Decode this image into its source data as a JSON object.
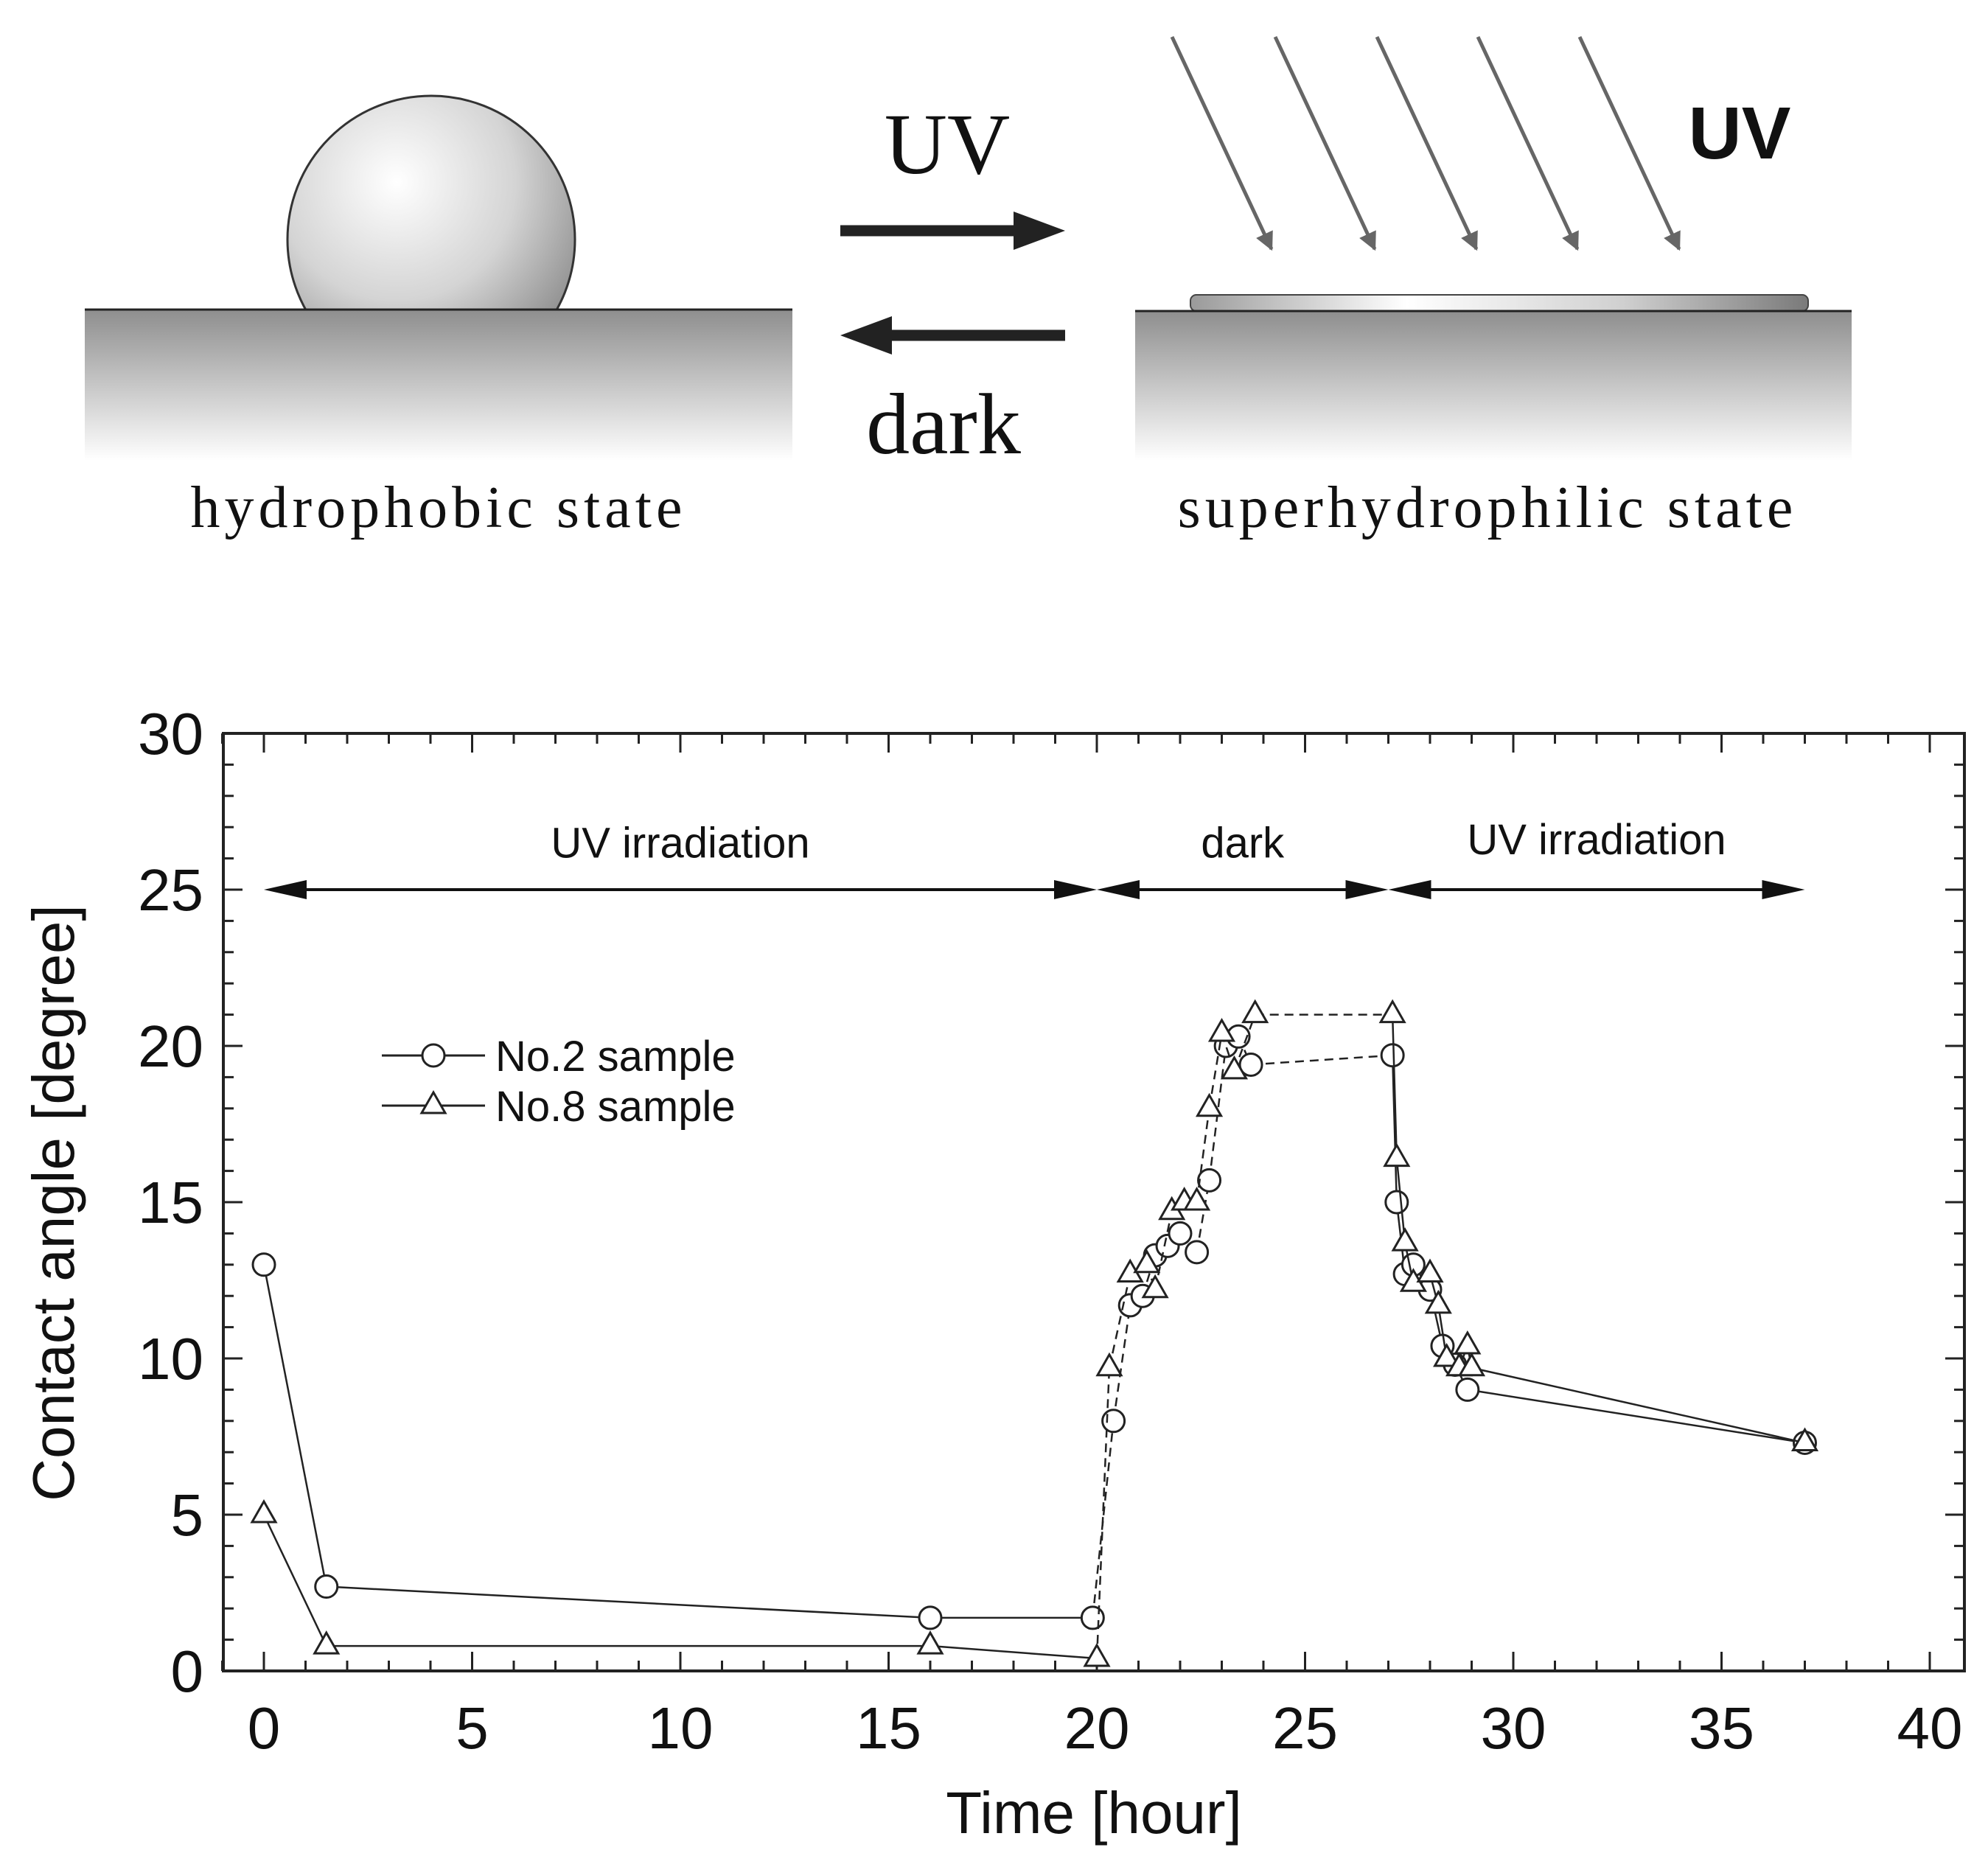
{
  "schematic": {
    "left_state_label": "hydrophobic state",
    "right_state_label": "superhydrophilic state",
    "forward_arrow_label": "UV",
    "backward_arrow_label": "dark",
    "irradiation_label": "UV"
  },
  "chart_data": {
    "type": "line",
    "xlabel": "Time [hour]",
    "ylabel": "Contact angle [degree]",
    "xlim": [
      -1,
      40
    ],
    "ylim": [
      0,
      30
    ],
    "x_ticks": [
      0,
      5,
      10,
      15,
      20,
      25,
      30,
      35,
      40
    ],
    "y_ticks": [
      0,
      5,
      10,
      15,
      20,
      25,
      30
    ],
    "legend_position": "upper-left",
    "grid": false,
    "series": [
      {
        "name": "No.2 sample",
        "marker": "circle",
        "points": [
          [
            0,
            13.0
          ],
          [
            1.5,
            2.7
          ],
          [
            16,
            1.7
          ],
          [
            19.9,
            1.7
          ],
          [
            20.4,
            8.0
          ],
          [
            20.8,
            11.7
          ],
          [
            21.1,
            12.0
          ],
          [
            21.4,
            13.3
          ],
          [
            21.7,
            13.6
          ],
          [
            22.0,
            14.0
          ],
          [
            22.4,
            13.4
          ],
          [
            22.7,
            15.7
          ],
          [
            23.1,
            20.0
          ],
          [
            23.4,
            20.3
          ],
          [
            23.7,
            19.4
          ],
          [
            27.1,
            19.7
          ],
          [
            27.2,
            15.0
          ],
          [
            27.4,
            12.7
          ],
          [
            27.6,
            13.0
          ],
          [
            28.0,
            12.2
          ],
          [
            28.3,
            10.4
          ],
          [
            28.6,
            9.8
          ],
          [
            28.9,
            9.0
          ],
          [
            37.0,
            7.3
          ]
        ],
        "line_styles": [
          "solid",
          "solid",
          "solid",
          "dashed",
          "dashed",
          "dashed",
          "dashed",
          "dashed",
          "dashed",
          "dashed",
          "dashed",
          "dashed",
          "dashed",
          "dashed",
          "dashed",
          "solid",
          "solid",
          "solid",
          "solid",
          "solid",
          "solid",
          "solid",
          "solid"
        ]
      },
      {
        "name": "No.8 sample",
        "marker": "triangle",
        "points": [
          [
            0,
            5.0
          ],
          [
            1.5,
            0.8
          ],
          [
            16,
            0.8
          ],
          [
            20.0,
            0.4
          ],
          [
            20.3,
            9.7
          ],
          [
            20.8,
            12.7
          ],
          [
            21.2,
            13.0
          ],
          [
            21.4,
            12.2
          ],
          [
            21.8,
            14.7
          ],
          [
            22.1,
            15.0
          ],
          [
            22.4,
            15.0
          ],
          [
            22.7,
            18.0
          ],
          [
            23.0,
            20.4
          ],
          [
            23.3,
            19.2
          ],
          [
            23.8,
            21.0
          ],
          [
            27.1,
            21.0
          ],
          [
            27.2,
            16.4
          ],
          [
            27.4,
            13.7
          ],
          [
            27.6,
            12.4
          ],
          [
            28.0,
            12.7
          ],
          [
            28.2,
            11.7
          ],
          [
            28.4,
            10.0
          ],
          [
            28.7,
            9.7
          ],
          [
            28.9,
            10.4
          ],
          [
            29.0,
            9.7
          ],
          [
            37.0,
            7.3
          ]
        ],
        "line_styles": [
          "solid",
          "solid",
          "solid",
          "dashed",
          "dashed",
          "dashed",
          "dashed",
          "dashed",
          "dashed",
          "dashed",
          "dashed",
          "dashed",
          "dashed",
          "dashed",
          "dashed",
          "solid",
          "solid",
          "solid",
          "solid",
          "solid",
          "solid",
          "solid",
          "solid",
          "solid",
          "solid"
        ]
      }
    ],
    "annotations": [
      {
        "label": "UV irradiation",
        "x_start": 0,
        "x_end": 20,
        "y": 25,
        "label_y": 26.5
      },
      {
        "label": "dark",
        "x_start": 20,
        "x_end": 27,
        "y": 25,
        "label_y": 26.5
      },
      {
        "label": "UV irradiation",
        "x_start": 27,
        "x_end": 37,
        "y": 25,
        "label_y": 26.6
      }
    ]
  }
}
